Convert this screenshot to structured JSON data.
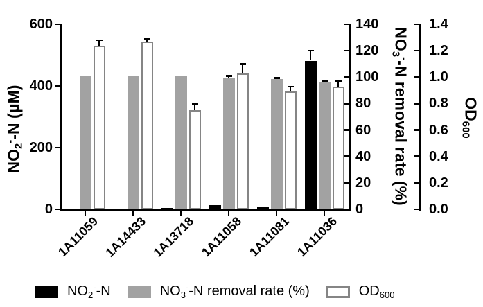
{
  "chart_data": {
    "type": "bar",
    "title": "",
    "grid": false,
    "legend_position": "bottom",
    "categories": [
      "1A11059",
      "1A14433",
      "1A13718",
      "1A11058",
      "1A11081",
      "1A11036"
    ],
    "series": [
      {
        "id": "no2",
        "label_parts": [
          {
            "t": "NO"
          },
          {
            "t": "2",
            "s": "sub"
          },
          {
            "t": "-",
            "s": "sup"
          },
          {
            "t": "-N"
          }
        ],
        "axis": "left",
        "color": "#000000",
        "values": [
          2,
          2,
          5,
          13,
          7,
          482
        ],
        "errors": [
          0,
          0,
          0,
          0,
          0,
          33
        ]
      },
      {
        "id": "no3-removal",
        "label_parts": [
          {
            "t": "NO"
          },
          {
            "t": "3",
            "s": "sub"
          },
          {
            "t": "-",
            "s": "sup"
          },
          {
            "t": "-N removal rate (%)"
          }
        ],
        "axis": "removal",
        "color": "#a2a2a2",
        "values": [
          101,
          101,
          101,
          99.5,
          98.5,
          96
        ],
        "errors": [
          0,
          0,
          0,
          1.5,
          1,
          1
        ]
      },
      {
        "id": "od600",
        "label_parts": [
          {
            "t": "OD"
          },
          {
            "t": "600",
            "s": "sub"
          }
        ],
        "axis": "od",
        "color": "#ffffff",
        "border_color": "#858585",
        "values": [
          1.24,
          1.27,
          0.75,
          1.03,
          0.89,
          0.93
        ],
        "errors": [
          0.04,
          0.02,
          0.05,
          0.07,
          0.04,
          0.04
        ]
      }
    ],
    "axes": {
      "left": {
        "title_parts": [
          {
            "t": "NO"
          },
          {
            "t": "2",
            "s": "sub"
          },
          {
            "t": "-",
            "s": "sup"
          },
          {
            "t": "-N (μM)"
          }
        ],
        "min": 0,
        "max": 600,
        "tick_values": [
          0,
          200,
          400,
          600
        ],
        "tick_labels": [
          "0",
          "200",
          "400",
          "600"
        ]
      },
      "removal": {
        "title_parts": [
          {
            "t": "NO"
          },
          {
            "t": "3",
            "s": "sub"
          },
          {
            "t": "-",
            "s": "sup"
          },
          {
            "t": "-N removal rate (%)"
          }
        ],
        "min": 0,
        "max": 140,
        "tick_values": [
          0,
          20,
          40,
          60,
          80,
          100,
          120,
          140
        ],
        "tick_labels": [
          "0",
          "20",
          "40",
          "60",
          "80",
          "100",
          "120",
          "140"
        ]
      },
      "od": {
        "title_parts": [
          {
            "t": "OD"
          },
          {
            "t": "600",
            "s": "sub"
          }
        ],
        "min": 0,
        "max": 1.4,
        "tick_values": [
          0,
          0.2,
          0.4,
          0.6,
          0.8,
          1.0,
          1.2,
          1.4
        ],
        "tick_labels": [
          "0.0",
          "0.2",
          "0.4",
          "0.6",
          "0.8",
          "1.0",
          "1.2",
          "1.4"
        ]
      }
    },
    "colors": {
      "bar_black": "#000000",
      "bar_gray": "#a2a2a2",
      "bar_white_fill": "#ffffff",
      "bar_white_border": "#858585",
      "axis": "#000000",
      "background": "#ffffff"
    }
  }
}
